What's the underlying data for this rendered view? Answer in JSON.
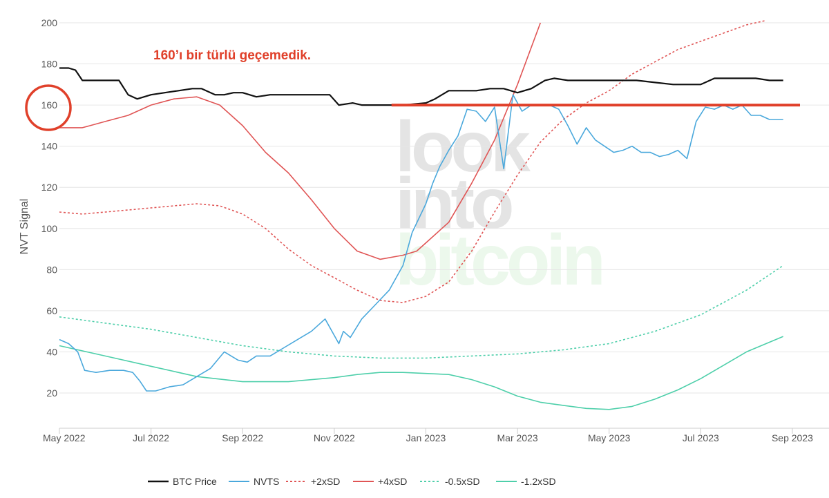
{
  "chart_data": {
    "type": "line",
    "ylabel": "NVT Signal",
    "ylim": [
      10,
      200
    ],
    "y_ticks": [
      20,
      40,
      60,
      80,
      100,
      120,
      140,
      160,
      180,
      200
    ],
    "x_ticks": [
      "May 2022",
      "Jul 2022",
      "Sep 2022",
      "Nov 2022",
      "Jan 2023",
      "Mar 2023",
      "May 2023",
      "Jul 2023",
      "Sep 2023"
    ],
    "x_tick_months": [
      0,
      2,
      4,
      6,
      8,
      10,
      12,
      14,
      16
    ],
    "xlim_months": [
      0,
      16.8
    ],
    "grid": true,
    "legend_position": "bottom",
    "annotation": {
      "text": "160’ı bir türlü geçemedik.",
      "color": "#e0402a",
      "highlight_level": 160,
      "highlight_from_month": 7.25,
      "highlight_to_month": 16.8
    },
    "watermark": [
      "look",
      "into",
      "bitcoin"
    ],
    "series": [
      {
        "name": "BTC Price",
        "color": "#111111",
        "dash": "solid",
        "x": [
          0,
          0.2,
          0.35,
          0.5,
          0.8,
          1.1,
          1.3,
          1.5,
          1.7,
          2.0,
          2.3,
          2.6,
          2.9,
          3.1,
          3.4,
          3.6,
          3.8,
          4.0,
          4.3,
          4.6,
          5.0,
          5.5,
          5.9,
          6.1,
          6.4,
          6.6,
          7.0,
          7.5,
          8.0,
          8.2,
          8.5,
          8.8,
          9.1,
          9.4,
          9.7,
          10.0,
          10.3,
          10.6,
          10.8,
          11.1,
          11.4,
          11.7,
          12.0,
          12.3,
          12.6,
          13.0,
          13.4,
          13.8,
          14.0,
          14.3,
          14.6,
          14.9,
          15.2,
          15.5,
          15.8
        ],
        "values": [
          178,
          178,
          177,
          172,
          172,
          172,
          172,
          165,
          163,
          165,
          166,
          167,
          168,
          168,
          165,
          165,
          166,
          166,
          164,
          165,
          165,
          165,
          165,
          160,
          161,
          160,
          160,
          160,
          161,
          163,
          167,
          167,
          167,
          168,
          168,
          166,
          168,
          172,
          173,
          172,
          172,
          172,
          172,
          172,
          172,
          171,
          170,
          170,
          170,
          173,
          173,
          173,
          173,
          172,
          172
        ]
      },
      {
        "name": "NVTS",
        "color": "#4aa8dc",
        "dash": "solid",
        "x": [
          0,
          0.2,
          0.4,
          0.55,
          0.8,
          1.1,
          1.4,
          1.6,
          1.75,
          1.9,
          2.1,
          2.4,
          2.7,
          3.0,
          3.3,
          3.6,
          3.9,
          4.1,
          4.3,
          4.6,
          4.9,
          5.2,
          5.5,
          5.8,
          6.1,
          6.2,
          6.35,
          6.6,
          6.9,
          7.2,
          7.5,
          7.7,
          7.85,
          8.0,
          8.15,
          8.3,
          8.5,
          8.7,
          8.9,
          9.1,
          9.3,
          9.5,
          9.7,
          9.9,
          10.1,
          10.3,
          10.5,
          10.7,
          10.9,
          11.1,
          11.3,
          11.5,
          11.7,
          11.9,
          12.1,
          12.3,
          12.5,
          12.7,
          12.9,
          13.1,
          13.3,
          13.5,
          13.7,
          13.9,
          14.1,
          14.3,
          14.5,
          14.7,
          14.9,
          15.1,
          15.3,
          15.5,
          15.8
        ],
        "values": [
          46,
          44,
          40,
          31,
          30,
          31,
          31,
          30,
          26,
          21,
          21,
          23,
          24,
          28,
          32,
          40,
          36,
          35,
          38,
          38,
          42,
          46,
          50,
          56,
          44,
          50,
          47,
          56,
          63,
          70,
          82,
          98,
          105,
          112,
          122,
          130,
          138,
          145,
          158,
          157,
          152,
          159,
          129,
          165,
          157,
          160,
          160,
          160,
          158,
          150,
          141,
          149,
          143,
          140,
          137,
          138,
          140,
          137,
          137,
          135,
          136,
          138,
          134,
          152,
          159,
          158,
          160,
          158,
          160,
          155,
          155,
          153,
          153
        ]
      },
      {
        "name": "+2xSD",
        "color": "#e05555",
        "dash": "dotted",
        "x": [
          0,
          0.5,
          1.0,
          1.5,
          2.0,
          2.5,
          3.0,
          3.5,
          4.0,
          4.5,
          5.0,
          5.5,
          6.0,
          6.5,
          7.0,
          7.5,
          8.0,
          8.5,
          9.0,
          9.5,
          10.0,
          10.5,
          11.0,
          11.5,
          12.0,
          12.5,
          13.0,
          13.5,
          14.0,
          14.5,
          15.0,
          15.4
        ],
        "values": [
          108,
          107,
          108,
          109,
          110,
          111,
          112,
          111,
          107,
          100,
          90,
          82,
          76,
          70,
          65,
          64,
          67,
          74,
          89,
          108,
          126,
          142,
          153,
          161,
          167,
          175,
          181,
          187,
          191,
          195,
          199,
          201
        ]
      },
      {
        "name": "+4xSD",
        "color": "#e05555",
        "dash": "solid",
        "x": [
          0,
          0.5,
          1.0,
          1.5,
          2.0,
          2.5,
          3.0,
          3.5,
          4.0,
          4.5,
          5.0,
          5.5,
          6.0,
          6.5,
          7.0,
          7.5,
          7.8,
          8.0,
          8.5,
          9.0,
          9.5,
          10.0,
          10.5
        ],
        "values": [
          149,
          149,
          152,
          155,
          160,
          163,
          164,
          160,
          150,
          137,
          127,
          114,
          100,
          89,
          85,
          87,
          89,
          93,
          103,
          122,
          143,
          170,
          200
        ]
      },
      {
        "name": "-0.5xSD",
        "color": "#4ecfaa",
        "dash": "dotted",
        "x": [
          0,
          1,
          2,
          3,
          4,
          5,
          6,
          7,
          8,
          9,
          10,
          11,
          12,
          13,
          14,
          15,
          15.8
        ],
        "values": [
          57,
          54,
          51,
          47,
          43,
          40,
          38,
          37,
          37,
          38,
          39,
          41,
          44,
          50,
          58,
          70,
          82
        ]
      },
      {
        "name": "-1.2xSD",
        "color": "#4ecfaa",
        "dash": "solid",
        "x": [
          0,
          1,
          2,
          3,
          4,
          5,
          6,
          6.5,
          7,
          7.5,
          8,
          8.5,
          9,
          9.5,
          10,
          10.5,
          11,
          11.5,
          12,
          12.5,
          13,
          13.5,
          14,
          14.5,
          15,
          15.8
        ],
        "values": [
          43,
          38,
          33,
          28,
          25.5,
          25.5,
          27.5,
          29,
          30,
          30,
          29.5,
          29,
          26.5,
          23,
          18.5,
          15.5,
          14,
          12.5,
          12,
          13.5,
          17,
          21.5,
          27,
          33.5,
          40,
          47.5
        ]
      }
    ]
  }
}
